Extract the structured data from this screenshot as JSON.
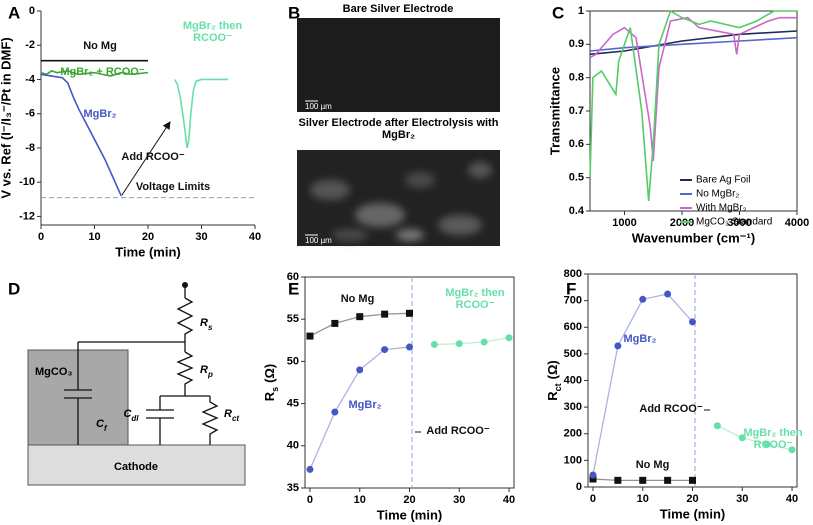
{
  "chart_data": [
    {
      "type": "line",
      "panel_label": "A",
      "x_label": "Time (min)",
      "y_label": "V vs. Ref (I⁻/I₃⁻/Pt in DMF)",
      "xlim": [
        0,
        40
      ],
      "xticks": [
        0,
        10,
        20,
        30,
        40
      ],
      "ylim": [
        -12.5,
        0
      ],
      "yticks": [
        0,
        -2,
        -4,
        -6,
        -8,
        -10,
        -12
      ],
      "limit": -10.9,
      "annotations": [
        "Add RCOO⁻",
        "Voltage Limits"
      ],
      "series": [
        {
          "name": "No Mg",
          "color": "#111111",
          "x": [
            0,
            5,
            10,
            15,
            20
          ],
          "values": [
            -2.9,
            -2.9,
            -2.9,
            -2.9,
            -2.9
          ]
        },
        {
          "name": "MgBr₂ + RCOO⁻",
          "color": "#3aa636",
          "x": [
            0,
            1,
            2,
            3,
            5,
            7,
            10,
            13,
            15,
            17,
            20
          ],
          "values": [
            -3.6,
            -3.7,
            -3.5,
            -3.6,
            -3.5,
            -3.7,
            -3.6,
            -3.8,
            -3.6,
            -3.7,
            -3.6
          ]
        },
        {
          "name": "MgBr₂",
          "color": "#4457c4",
          "x": [
            0,
            2,
            4,
            5,
            6,
            7,
            8,
            9,
            10,
            11,
            12,
            13,
            14,
            15
          ],
          "values": [
            -3.7,
            -3.8,
            -3.9,
            -4.2,
            -5.0,
            -5.7,
            -6.3,
            -6.9,
            -7.5,
            -8.1,
            -8.7,
            -9.4,
            -10.1,
            -10.8
          ]
        },
        {
          "name": "MgBr₂ then RCOO⁻",
          "color": "#66e0a8",
          "x": [
            25,
            25.5,
            26,
            26.5,
            27,
            27.3,
            27.6,
            28,
            28.5,
            29,
            30,
            32,
            35
          ],
          "values": [
            -4.0,
            -4.3,
            -5.0,
            -6.0,
            -7.2,
            -8.0,
            -7.6,
            -6.0,
            -4.6,
            -4.1,
            -4.0,
            -4.0,
            -4.0
          ]
        }
      ]
    },
    {
      "type": "line",
      "panel_label": "C",
      "x_label": "Wavenumber (cm⁻¹)",
      "y_label": "Transmittance",
      "xlim": [
        400,
        4000
      ],
      "xticks": [
        1000,
        2000,
        3000,
        4000
      ],
      "ylim": [
        0.4,
        1
      ],
      "yticks": [
        0.4,
        0.5,
        0.6,
        0.7,
        0.8,
        0.9,
        1
      ],
      "legend": "center right",
      "series": [
        {
          "name": "Bare Ag Foil",
          "color": "#1f2a55",
          "x": [
            400,
            1000,
            2000,
            3000,
            4000
          ],
          "values": [
            0.87,
            0.88,
            0.91,
            0.93,
            0.94
          ]
        },
        {
          "name": "No MgBr₂",
          "color": "#5566cc",
          "x": [
            400,
            1000,
            2000,
            3000,
            4000
          ],
          "values": [
            0.88,
            0.89,
            0.9,
            0.91,
            0.92
          ]
        },
        {
          "name": "With MgBr₂",
          "color": "#cc66cc",
          "x": [
            400,
            500,
            800,
            1000,
            1200,
            1450,
            1500,
            1600,
            1800,
            2100,
            2300,
            2900,
            2950,
            3000,
            3500,
            3700,
            4000
          ],
          "values": [
            0.86,
            0.87,
            0.93,
            0.95,
            0.92,
            0.65,
            0.55,
            0.83,
            0.97,
            0.98,
            0.95,
            0.93,
            0.87,
            0.93,
            0.97,
            0.98,
            0.98
          ]
        },
        {
          "name": "MgCO₃ Standard",
          "color": "#55cc66",
          "x": [
            400,
            450,
            600,
            850,
            900,
            1000,
            1100,
            1300,
            1420,
            1500,
            1600,
            1800,
            2000,
            2300,
            2500,
            3000,
            3300,
            3600,
            4000
          ],
          "values": [
            0.5,
            0.8,
            0.82,
            0.75,
            0.85,
            0.9,
            0.95,
            0.7,
            0.43,
            0.6,
            0.9,
            1.0,
            0.98,
            0.96,
            0.97,
            0.95,
            0.97,
            1.0,
            1.0
          ]
        }
      ]
    },
    {
      "type": "line",
      "panel_label": "E",
      "x_label": "Time (min)",
      "y_label": "R",
      "y_label_sub": "s",
      "y_label_unit": "(Ω)",
      "xlim": [
        -1,
        41
      ],
      "xticks": [
        0,
        10,
        20,
        30,
        40
      ],
      "ylim": [
        35,
        60
      ],
      "yticks": [
        35,
        40,
        45,
        50,
        55,
        60
      ],
      "event_x": 20.5,
      "annotations": [
        "Add RCOO⁻"
      ],
      "series": [
        {
          "name": "No Mg",
          "color": "#111111",
          "marker": "square",
          "x": [
            0,
            5,
            10,
            15,
            20
          ],
          "values": [
            53,
            54.5,
            55.3,
            55.6,
            55.7
          ]
        },
        {
          "name": "MgBr₂",
          "color": "#4457c4",
          "marker": "circle",
          "x": [
            0,
            5,
            10,
            15,
            20
          ],
          "values": [
            37.2,
            44,
            49,
            51.4,
            51.7
          ]
        },
        {
          "name": "MgBr₂ then RCOO⁻",
          "color": "#66e0a8",
          "marker": "circle",
          "x": [
            25,
            30,
            35,
            40
          ],
          "values": [
            52,
            52.1,
            52.3,
            52.8
          ]
        }
      ]
    },
    {
      "type": "line",
      "panel_label": "F",
      "x_label": "Time (min)",
      "y_label": "R",
      "y_label_sub": "ct",
      "y_label_unit": "(Ω)",
      "xlim": [
        -1,
        41
      ],
      "xticks": [
        0,
        10,
        20,
        30,
        40
      ],
      "ylim": [
        0,
        800
      ],
      "yticks": [
        0,
        100,
        200,
        300,
        400,
        500,
        600,
        700,
        800
      ],
      "event_x": 20.5,
      "annotations": [
        "Add RCOO⁻"
      ],
      "series": [
        {
          "name": "No Mg",
          "color": "#111111",
          "marker": "square",
          "x": [
            0,
            5,
            10,
            15,
            20
          ],
          "values": [
            30,
            25,
            25,
            25,
            25
          ]
        },
        {
          "name": "MgBr₂",
          "color": "#4457c4",
          "marker": "circle",
          "x": [
            0,
            5,
            10,
            15,
            20
          ],
          "values": [
            45,
            530,
            705,
            725,
            620
          ]
        },
        {
          "name": "MgBr₂ then RCOO⁻",
          "color": "#66e0a8",
          "marker": "circle",
          "x": [
            25,
            30,
            35,
            40
          ],
          "values": [
            230,
            185,
            160,
            140
          ]
        }
      ]
    }
  ],
  "panel_b": {
    "panel_label": "B",
    "images": [
      {
        "title": "Bare Silver Electrode",
        "scale_bar": "100 µm"
      },
      {
        "title": "Silver Electrode after Electrolysis with MgBr₂",
        "scale_bar": "100 µm"
      }
    ]
  },
  "panel_d": {
    "panel_label": "D",
    "substrate": "Cathode",
    "film": "MgCO₃",
    "components": [
      {
        "symbol": "R",
        "subscript": "s"
      },
      {
        "symbol": "R",
        "subscript": "p"
      },
      {
        "symbol": "C",
        "subscript": "f"
      },
      {
        "symbol": "C",
        "subscript": "dl"
      },
      {
        "symbol": "R",
        "subscript": "ct"
      }
    ]
  }
}
